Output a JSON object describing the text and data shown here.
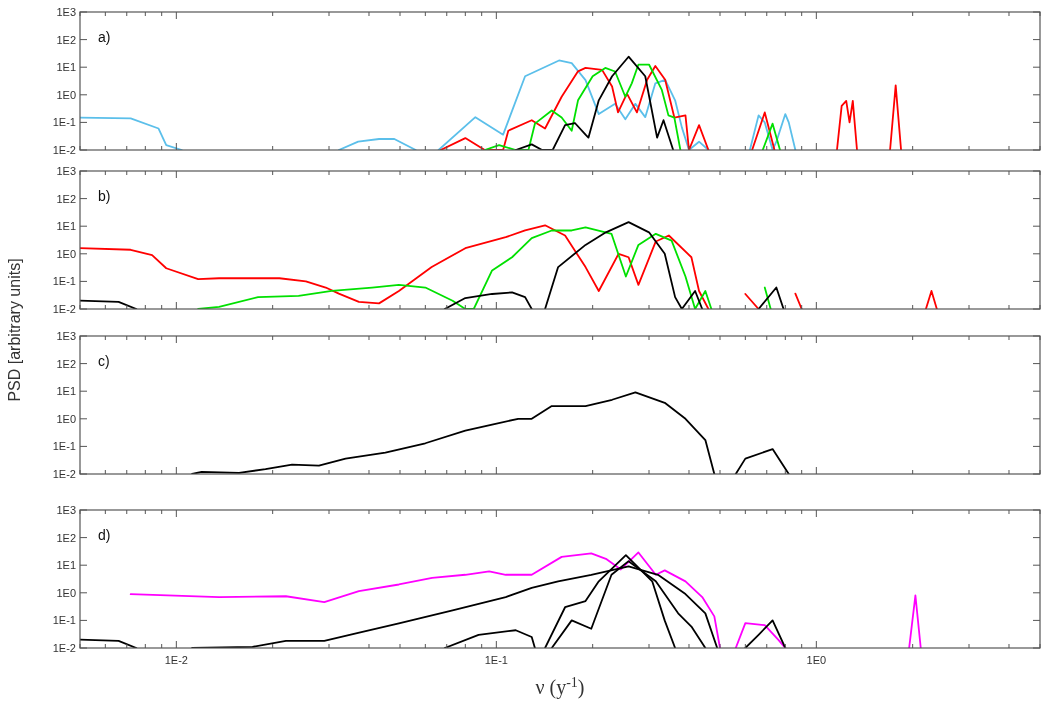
{
  "chart_data": [
    {
      "type": "line",
      "title": "a)",
      "log": "xy",
      "xlim": [
        0.005,
        5
      ],
      "ylim": [
        0.01,
        1000
      ],
      "tick_labels": "y",
      "line_style": "solid",
      "xticks": [
        {
          "value": 0.005,
          "label": null
        },
        {
          "value": 0.006,
          "label": null
        },
        {
          "value": 0.007,
          "label": null
        },
        {
          "value": 0.008,
          "label": null
        },
        {
          "value": 0.009,
          "label": null
        },
        {
          "value": 0.01,
          "label": null
        },
        {
          "value": 0.02,
          "label": null
        },
        {
          "value": 0.03,
          "label": null
        },
        {
          "value": 0.04,
          "label": null
        },
        {
          "value": 0.05,
          "label": null
        },
        {
          "value": 0.06,
          "label": null
        },
        {
          "value": 0.07,
          "label": null
        },
        {
          "value": 0.08,
          "label": null
        },
        {
          "value": 0.09,
          "label": null
        },
        {
          "value": 0.1,
          "label": null
        },
        {
          "value": 0.2,
          "label": null
        },
        {
          "value": 0.3,
          "label": null
        },
        {
          "value": 0.4,
          "label": null
        },
        {
          "value": 0.5,
          "label": null
        },
        {
          "value": 0.6,
          "label": null
        },
        {
          "value": 0.7,
          "label": null
        },
        {
          "value": 0.8,
          "label": null
        },
        {
          "value": 0.9,
          "label": null
        },
        {
          "value": 1,
          "label": null
        },
        {
          "value": 2,
          "label": null
        },
        {
          "value": 3,
          "label": null
        },
        {
          "value": 4,
          "label": null
        },
        {
          "value": 5,
          "label": null
        }
      ],
      "yticks": [
        {
          "value": 0.01,
          "label": "1E-2"
        },
        {
          "value": 0.1,
          "label": "1E-1"
        },
        {
          "value": 1,
          "label": "1E0"
        },
        {
          "value": 10,
          "label": "1E1"
        },
        {
          "value": 100,
          "label": "1E2"
        },
        {
          "value": 1000,
          "label": "1E3"
        }
      ],
      "series": [
        {
          "color": "#5bbfea",
          "x": [
            0.005,
            0.0072,
            0.0088,
            0.0093,
            0.0104,
            0.0105,
            0.0322,
            0.037,
            0.043,
            0.048,
            0.056,
            0.057,
            0.066,
            0.086,
            0.105,
            0.123,
            0.157,
            0.172,
            0.19,
            0.209,
            0.235,
            0.253,
            0.272,
            0.292,
            0.314,
            0.337,
            0.362,
            0.38,
            0.4,
            0.43,
            0.46,
            0.48,
            0.62,
            0.66,
            0.69,
            0.73,
            0.75,
            0.8,
            0.82,
            0.86
          ],
          "values": [
            0.15,
            0.14,
            0.06,
            0.015,
            0.01,
            null,
            0.01,
            0.02,
            0.025,
            0.025,
            0.01,
            null,
            0.01,
            0.155,
            0.036,
            4.7,
            17.5,
            14,
            3.4,
            0.2,
            0.47,
            0.13,
            0.47,
            0.155,
            2.6,
            3.5,
            0.63,
            0.066,
            0.01,
            0.02,
            0.01,
            null,
            0.01,
            0.18,
            0.1,
            0.01,
            0.02,
            0.2,
            0.1,
            0.01
          ]
        },
        {
          "color": "#ff0000",
          "x": [
            0.067,
            0.08,
            0.092,
            0.105,
            0.109,
            0.129,
            0.142,
            0.16,
            0.18,
            0.19,
            0.214,
            0.23,
            0.24,
            0.256,
            0.275,
            0.296,
            0.314,
            0.337,
            0.36,
            0.39,
            0.4,
            0.43,
            0.46,
            0.47,
            0.63,
            0.69,
            0.74,
            0.75,
            1.16,
            1.2,
            1.24,
            1.27,
            1.3,
            1.34,
            1.35,
            1.7,
            1.77,
            1.84
          ],
          "values": [
            0.01,
            0.027,
            0.01,
            0.01,
            0.05,
            0.12,
            0.06,
            0.85,
            7.1,
            9.4,
            8,
            2,
            0.23,
            1.1,
            0.23,
            3.5,
            11,
            3.5,
            0.15,
            0.18,
            0.01,
            0.08,
            0.01,
            null,
            0.01,
            0.23,
            0.01,
            null,
            0.01,
            0.4,
            0.6,
            0.1,
            0.6,
            0.01,
            null,
            0.01,
            2.2,
            0.01
          ]
        },
        {
          "color": "#00e000",
          "x": [
            0.092,
            0.102,
            0.115,
            0.126,
            0.132,
            0.149,
            0.16,
            0.172,
            0.18,
            0.2,
            0.219,
            0.235,
            0.253,
            0.265,
            0.278,
            0.3,
            0.329,
            0.345,
            0.36,
            0.376,
            0.38,
            0.68,
            0.73,
            0.77
          ],
          "values": [
            0.01,
            0.015,
            0.01,
            0.01,
            0.09,
            0.27,
            0.15,
            0.05,
            0.63,
            4.7,
            9.4,
            7,
            0.85,
            2.6,
            12.5,
            12.5,
            1.5,
            0.18,
            0.15,
            0.01,
            null,
            0.01,
            0.09,
            0.01
          ]
        },
        {
          "color": "#000000",
          "x": [
            0.115,
            0.129,
            0.139,
            0.15,
            0.164,
            0.176,
            0.19,
            0.194,
            0.209,
            0.23,
            0.259,
            0.292,
            0.318,
            0.333,
            0.357
          ],
          "values": [
            0.01,
            0.016,
            0.01,
            0.01,
            0.08,
            0.095,
            0.036,
            0.028,
            0.63,
            4.7,
            24,
            4.7,
            0.028,
            0.12,
            0.01
          ]
        }
      ]
    },
    {
      "type": "line",
      "title": "b)",
      "log": "xy",
      "xlim": [
        0.005,
        5
      ],
      "ylim": [
        0.01,
        1000
      ],
      "tick_labels": "y",
      "line_style": "solid",
      "xticks": [
        {
          "value": 0.005,
          "label": null
        },
        {
          "value": 0.006,
          "label": null
        },
        {
          "value": 0.007,
          "label": null
        },
        {
          "value": 0.008,
          "label": null
        },
        {
          "value": 0.009,
          "label": null
        },
        {
          "value": 0.01,
          "label": null
        },
        {
          "value": 0.02,
          "label": null
        },
        {
          "value": 0.03,
          "label": null
        },
        {
          "value": 0.04,
          "label": null
        },
        {
          "value": 0.05,
          "label": null
        },
        {
          "value": 0.06,
          "label": null
        },
        {
          "value": 0.07,
          "label": null
        },
        {
          "value": 0.08,
          "label": null
        },
        {
          "value": 0.09,
          "label": null
        },
        {
          "value": 0.1,
          "label": null
        },
        {
          "value": 0.2,
          "label": null
        },
        {
          "value": 0.3,
          "label": null
        },
        {
          "value": 0.4,
          "label": null
        },
        {
          "value": 0.5,
          "label": null
        },
        {
          "value": 0.6,
          "label": null
        },
        {
          "value": 0.7,
          "label": null
        },
        {
          "value": 0.8,
          "label": null
        },
        {
          "value": 0.9,
          "label": null
        },
        {
          "value": 1,
          "label": null
        },
        {
          "value": 2,
          "label": null
        },
        {
          "value": 3,
          "label": null
        },
        {
          "value": 4,
          "label": null
        },
        {
          "value": 5,
          "label": null
        }
      ],
      "yticks": [
        {
          "value": 0.01,
          "label": "1E-2"
        },
        {
          "value": 0.1,
          "label": "1E-1"
        },
        {
          "value": 1,
          "label": "1E0"
        },
        {
          "value": 10,
          "label": "1E1"
        },
        {
          "value": 100,
          "label": "1E2"
        },
        {
          "value": 1000,
          "label": "1E3"
        }
      ],
      "series": [
        {
          "color": "#ff0000",
          "x": [
            0.005,
            0.0072,
            0.0084,
            0.0093,
            0.0117,
            0.0136,
            0.021,
            0.0254,
            0.0293,
            0.0322,
            0.0372,
            0.043,
            0.0496,
            0.0628,
            0.08,
            0.107,
            0.123,
            0.142,
            0.164,
            0.19,
            0.209,
            0.241,
            0.259,
            0.278,
            0.315,
            0.346,
            0.407,
            0.43,
            0.46,
            0.5,
            0.6,
            0.66,
            0.7,
            0.86,
            0.9,
            0.95,
            2.2,
            2.29,
            2.38
          ],
          "values": [
            1.6,
            1.4,
            0.9,
            0.3,
            0.12,
            0.13,
            0.13,
            0.1,
            0.06,
            0.036,
            0.018,
            0.016,
            0.045,
            0.33,
            1.6,
            4,
            7,
            10.8,
            4.6,
            0.33,
            0.045,
            1,
            0.75,
            0.075,
            2.8,
            4.6,
            0.75,
            0.045,
            0.01,
            null,
            0.035,
            0.01,
            null,
            0.036,
            0.01,
            null,
            0.01,
            0.045,
            0.01
          ]
        },
        {
          "color": "#00e000",
          "x": [
            0.0117,
            0.0136,
            0.018,
            0.0241,
            0.0306,
            0.0409,
            0.0496,
            0.06,
            0.073,
            0.08,
            0.085,
            0.097,
            0.112,
            0.129,
            0.149,
            0.172,
            0.19,
            0.229,
            0.254,
            0.278,
            0.315,
            0.353,
            0.39,
            0.418,
            0.45,
            0.47,
            0.5,
            0.69,
            0.72
          ],
          "values": [
            0.01,
            0.012,
            0.027,
            0.03,
            0.045,
            0.06,
            0.075,
            0.06,
            0.02,
            0.01,
            0.01,
            0.25,
            0.75,
            3.7,
            7,
            7,
            9,
            5.3,
            0.15,
            2.1,
            5.3,
            3,
            0.15,
            0.01,
            0.045,
            0.01,
            null,
            0.06,
            0.01
          ]
        },
        {
          "color": "#000000",
          "x": [
            0.005,
            0.0066,
            0.0075,
            0.008,
            0.069,
            0.08,
            0.097,
            0.112,
            0.123,
            0.129,
            0.135,
            0.142,
            0.156,
            0.19,
            0.22,
            0.259,
            0.3,
            0.336,
            0.362,
            0.38,
            0.418,
            0.44,
            0.5,
            0.66,
            0.75,
            0.79
          ],
          "values": [
            0.02,
            0.018,
            0.01,
            null,
            0.01,
            0.025,
            0.035,
            0.04,
            0.027,
            0.01,
            null,
            0.01,
            0.33,
            2.1,
            6,
            14,
            6,
            1,
            0.027,
            0.01,
            0.045,
            0.01,
            null,
            0.01,
            0.06,
            0.01
          ]
        }
      ]
    },
    {
      "type": "line",
      "title": "c)",
      "ylabel": "PSD [arbitrary units]",
      "log": "xy",
      "xlim": [
        0.005,
        5
      ],
      "ylim": [
        0.01,
        1000
      ],
      "tick_labels": "y",
      "line_style": "solid",
      "xticks": [
        {
          "value": 0.005,
          "label": null
        },
        {
          "value": 0.006,
          "label": null
        },
        {
          "value": 0.007,
          "label": null
        },
        {
          "value": 0.008,
          "label": null
        },
        {
          "value": 0.009,
          "label": null
        },
        {
          "value": 0.01,
          "label": null
        },
        {
          "value": 0.02,
          "label": null
        },
        {
          "value": 0.03,
          "label": null
        },
        {
          "value": 0.04,
          "label": null
        },
        {
          "value": 0.05,
          "label": null
        },
        {
          "value": 0.06,
          "label": null
        },
        {
          "value": 0.07,
          "label": null
        },
        {
          "value": 0.08,
          "label": null
        },
        {
          "value": 0.09,
          "label": null
        },
        {
          "value": 0.1,
          "label": null
        },
        {
          "value": 0.2,
          "label": null
        },
        {
          "value": 0.3,
          "label": null
        },
        {
          "value": 0.4,
          "label": null
        },
        {
          "value": 0.5,
          "label": null
        },
        {
          "value": 0.6,
          "label": null
        },
        {
          "value": 0.7,
          "label": null
        },
        {
          "value": 0.8,
          "label": null
        },
        {
          "value": 0.9,
          "label": null
        },
        {
          "value": 1,
          "label": null
        },
        {
          "value": 2,
          "label": null
        },
        {
          "value": 3,
          "label": null
        },
        {
          "value": 4,
          "label": null
        },
        {
          "value": 5,
          "label": null
        }
      ],
      "yticks": [
        {
          "value": 0.01,
          "label": "1E-2"
        },
        {
          "value": 0.1,
          "label": "1E-1"
        },
        {
          "value": 1,
          "label": "1E0"
        },
        {
          "value": 10,
          "label": "1E1"
        },
        {
          "value": 100,
          "label": "1E2"
        },
        {
          "value": 1000,
          "label": "1E3"
        }
      ],
      "series": [
        {
          "color": "#000000",
          "x": [
            0.0112,
            0.012,
            0.0157,
            0.019,
            0.023,
            0.0279,
            0.0338,
            0.045,
            0.06,
            0.08,
            0.097,
            0.117,
            0.129,
            0.149,
            0.19,
            0.23,
            0.272,
            0.336,
            0.39,
            0.45,
            0.48,
            0.5,
            0.56,
            0.6,
            0.73,
            0.82
          ],
          "values": [
            0.01,
            0.012,
            0.011,
            0.015,
            0.022,
            0.02,
            0.036,
            0.06,
            0.13,
            0.37,
            0.62,
            1,
            1,
            2.9,
            2.9,
            4.9,
            9.1,
            3.8,
            1,
            0.17,
            0.01,
            null,
            0.01,
            0.036,
            0.08,
            0.01
          ]
        }
      ]
    },
    {
      "type": "line",
      "title": "d)",
      "xlabel": "ν (y$^{-1}$)",
      "log": "xy",
      "xlim": [
        0.005,
        5
      ],
      "ylim": [
        0.01,
        1000
      ],
      "line_style": "solid",
      "xticks": [
        {
          "value": 0.005,
          "label": null
        },
        {
          "value": 0.006,
          "label": null
        },
        {
          "value": 0.007,
          "label": null
        },
        {
          "value": 0.008,
          "label": null
        },
        {
          "value": 0.009,
          "label": null
        },
        {
          "value": 0.01,
          "label": "1E-2"
        },
        {
          "value": 0.02,
          "label": null
        },
        {
          "value": 0.03,
          "label": null
        },
        {
          "value": 0.04,
          "label": null
        },
        {
          "value": 0.05,
          "label": null
        },
        {
          "value": 0.06,
          "label": null
        },
        {
          "value": 0.07,
          "label": null
        },
        {
          "value": 0.08,
          "label": null
        },
        {
          "value": 0.09,
          "label": null
        },
        {
          "value": 0.1,
          "label": "1E-1"
        },
        {
          "value": 0.2,
          "label": null
        },
        {
          "value": 0.3,
          "label": null
        },
        {
          "value": 0.4,
          "label": null
        },
        {
          "value": 0.5,
          "label": null
        },
        {
          "value": 0.6,
          "label": null
        },
        {
          "value": 0.7,
          "label": null
        },
        {
          "value": 0.8,
          "label": null
        },
        {
          "value": 0.9,
          "label": null
        },
        {
          "value": 1,
          "label": "1E0"
        },
        {
          "value": 2,
          "label": null
        },
        {
          "value": 3,
          "label": null
        },
        {
          "value": 4,
          "label": null
        },
        {
          "value": 5,
          "label": null
        }
      ],
      "yticks": [
        {
          "value": 0.01,
          "label": "1E-2"
        },
        {
          "value": 0.1,
          "label": "1E-1"
        },
        {
          "value": 1,
          "label": "1E0"
        },
        {
          "value": 10,
          "label": "1E1"
        },
        {
          "value": 100,
          "label": "1E2"
        },
        {
          "value": 1000,
          "label": "1E3"
        }
      ],
      "series": [
        {
          "color": "#ff00ff",
          "x": [
            0.0072,
            0.0136,
            0.022,
            0.029,
            0.0372,
            0.0496,
            0.063,
            0.08,
            0.095,
            0.107,
            0.129,
            0.16,
            0.198,
            0.22,
            0.245,
            0.278,
            0.315,
            0.336,
            0.39,
            0.44,
            0.48,
            0.5,
            0.52,
            0.56,
            0.6,
            0.69,
            0.76,
            0.8,
            0.85,
            1.95,
            2.04,
            2.12
          ],
          "values": [
            0.89,
            0.7,
            0.75,
            0.46,
            1.15,
            2,
            3.5,
            4.5,
            6,
            4.5,
            4.5,
            20,
            27,
            17,
            7,
            29,
            4.5,
            6.5,
            2.6,
            0.7,
            0.14,
            0.01,
            null,
            0.01,
            0.08,
            0.067,
            0.02,
            0.01,
            null,
            0.01,
            0.8,
            0.01
          ]
        },
        {
          "color": "#000000",
          "x": [
            0.0112,
            0.0173,
            0.022,
            0.029,
            0.037,
            0.0496,
            0.073,
            0.107,
            0.129,
            0.156,
            0.198,
            0.259,
            0.32,
            0.39,
            0.45,
            0.49,
            0.52,
            0.6,
            0.66,
            0.73,
            0.8
          ],
          "values": [
            0.01,
            0.011,
            0.018,
            0.018,
            0.035,
            0.078,
            0.23,
            0.7,
            1.5,
            2.6,
            4.5,
            9,
            4.5,
            0.9,
            0.18,
            0.01,
            null,
            0.01,
            0.03,
            0.1,
            0.01
          ]
        },
        {
          "color": "#000000",
          "x": [
            0.005,
            0.0066,
            0.0075
          ],
          "values": [
            0.02,
            0.018,
            0.01
          ]
        },
        {
          "color": "#000000",
          "x": [
            0.069,
            0.088,
            0.115,
            0.129,
            0.132
          ],
          "values": [
            0.01,
            0.03,
            0.044,
            0.025,
            0.01
          ]
        },
        {
          "color": "#000000",
          "x": [
            0.142,
            0.164,
            0.19,
            0.209,
            0.254,
            0.307,
            0.336,
            0.362
          ],
          "values": [
            0.01,
            0.3,
            0.5,
            2.6,
            23,
            2.6,
            0.098,
            0.01
          ]
        },
        {
          "color": "#000000",
          "x": [
            0.149,
            0.172,
            0.198,
            0.229,
            0.259,
            0.315,
            0.37,
            0.407,
            0.45
          ],
          "values": [
            0.01,
            0.1,
            0.05,
            4.5,
            14,
            2.6,
            0.18,
            0.06,
            0.01
          ]
        }
      ]
    }
  ]
}
